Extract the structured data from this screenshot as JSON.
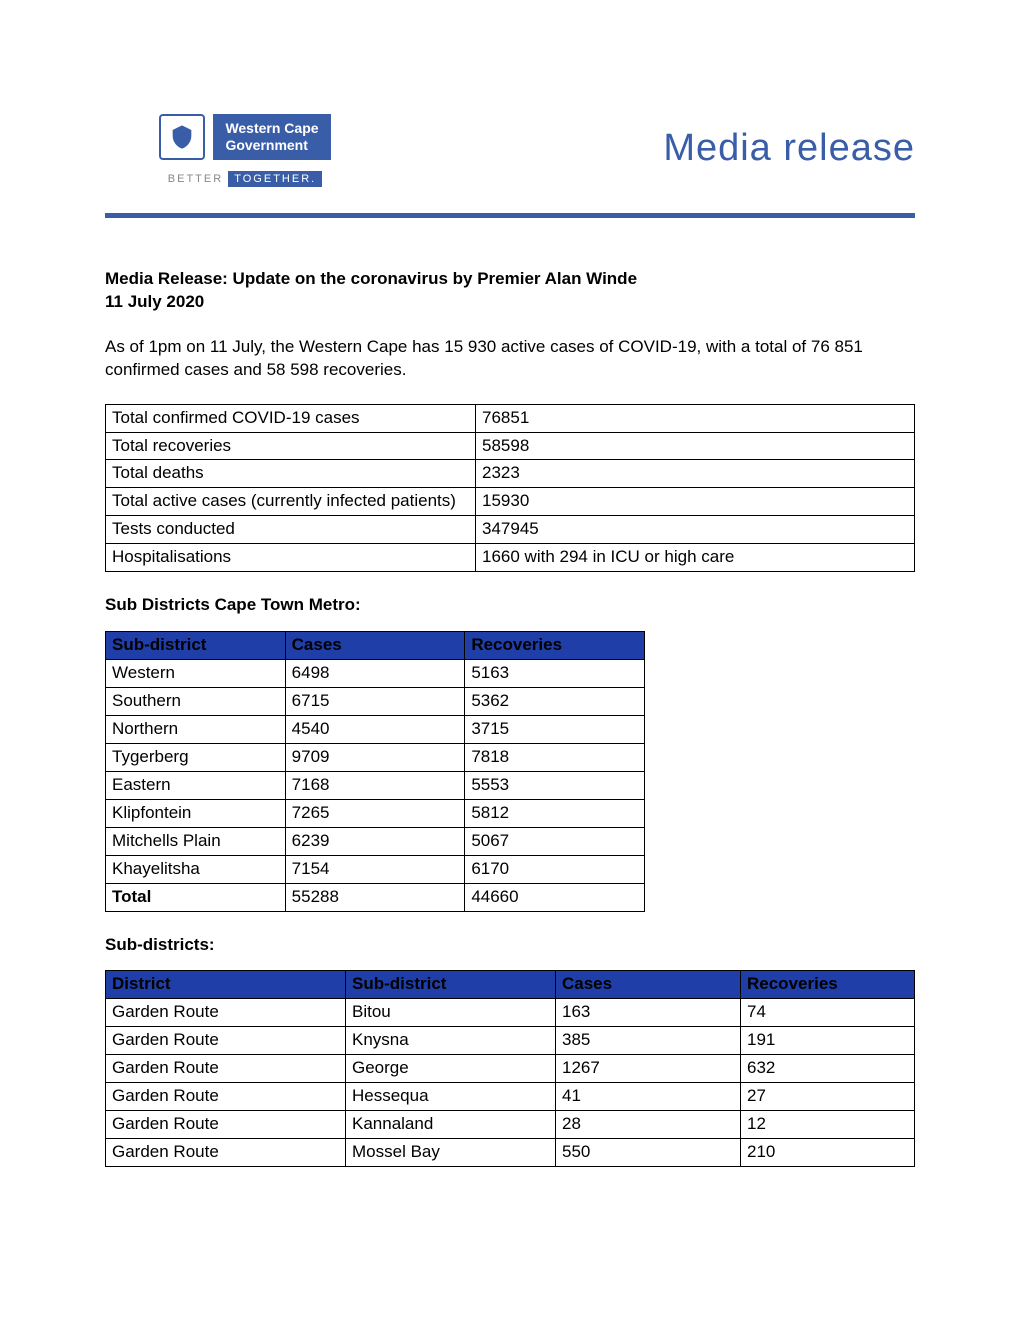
{
  "banner": {
    "logo_line1": "Western Cape",
    "logo_line2": "Government",
    "tagline_prefix": "BETTER",
    "tagline_boxed": "TOGETHER.",
    "title": "Media release",
    "divider_color": "#3a5da8"
  },
  "doc": {
    "title": "Media Release: Update on the coronavirus by Premier Alan Winde",
    "date": "11 July 2020",
    "intro": "As of 1pm on 11 July, the Western Cape has 15 930 active cases of COVID-19, with a total of 76 851 confirmed cases and 58 598 recoveries."
  },
  "summary": {
    "rows": [
      {
        "label": "Total confirmed COVID-19 cases",
        "value": "76851"
      },
      {
        "label": "Total recoveries",
        "value": "58598"
      },
      {
        "label": "Total deaths",
        "value": "2323"
      },
      {
        "label": "Total active cases (currently infected patients)",
        "value": "15930"
      },
      {
        "label": "Tests conducted",
        "value": "347945"
      },
      {
        "label": "Hospitalisations",
        "value": "1660 with 294 in ICU or high care"
      }
    ]
  },
  "metro": {
    "heading": "Sub Districts Cape Town Metro:",
    "columns": [
      "Sub-district",
      "Cases",
      "Recoveries"
    ],
    "rows": [
      [
        "Western",
        "6498",
        "5163"
      ],
      [
        "Southern",
        "6715",
        "5362"
      ],
      [
        "Northern",
        "4540",
        "3715"
      ],
      [
        "Tygerberg",
        "9709",
        "7818"
      ],
      [
        "Eastern",
        "7168",
        "5553"
      ],
      [
        "Klipfontein",
        "7265",
        "5812"
      ],
      [
        "Mitchells Plain",
        "6239",
        "5067"
      ],
      [
        "Khayelitsha",
        "7154",
        "6170"
      ]
    ],
    "total": [
      "Total",
      "55288",
      "44660"
    ]
  },
  "districts": {
    "heading": "Sub-districts:",
    "columns": [
      "District",
      "Sub-district",
      "Cases",
      "Recoveries"
    ],
    "rows": [
      [
        "Garden Route",
        "Bitou",
        "163",
        "74"
      ],
      [
        "Garden Route",
        "Knysna",
        "385",
        "191"
      ],
      [
        "Garden Route",
        "George",
        "1267",
        "632"
      ],
      [
        "Garden Route",
        "Hessequa",
        "41",
        "27"
      ],
      [
        "Garden Route",
        "Kannaland",
        "28",
        "12"
      ],
      [
        "Garden Route",
        "Mossel Bay",
        "550",
        "210"
      ]
    ]
  },
  "colors": {
    "header_bg": "#1f3ea8",
    "border": "#000000",
    "text": "#000000",
    "banner_blue": "#3a5da8"
  }
}
